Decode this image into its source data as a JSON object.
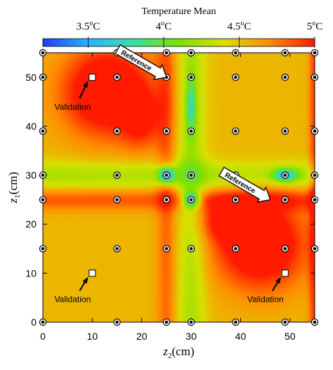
{
  "chart_data": {
    "type": "heatmap",
    "title": "Temperature Mean",
    "xlabel": {
      "symbol": "z",
      "sub": "2",
      "unit": "(cm)"
    },
    "ylabel": {
      "symbol": "z",
      "sub": "1",
      "unit": "(cm)"
    },
    "xlim": [
      0,
      55
    ],
    "ylim": [
      0,
      55
    ],
    "x_ticks": [
      0,
      10,
      20,
      30,
      40,
      50
    ],
    "y_ticks": [
      0,
      10,
      20,
      30,
      40,
      50
    ],
    "colorbar": {
      "range": [
        3.2,
        5.0
      ],
      "ticks": [
        {
          "value": 3.5,
          "label": "3.5",
          "unit": "oC"
        },
        {
          "value": 4.0,
          "label": "4",
          "unit": "oC"
        },
        {
          "value": 4.5,
          "label": "4.5",
          "unit": "oC"
        },
        {
          "value": 5.0,
          "label": "5",
          "unit": "oC"
        }
      ],
      "colors": [
        "#1e3cff",
        "#28b4ff",
        "#39e0a0",
        "#7ee000",
        "#d8e000",
        "#ff8c00",
        "#ff1a00"
      ]
    },
    "sensor_grid": {
      "x": [
        0,
        15,
        25,
        30,
        39,
        49,
        55
      ],
      "y": [
        0,
        15,
        25,
        30,
        39,
        50,
        55
      ]
    },
    "field_base": 4.55,
    "hot_spots": [
      {
        "x": 13,
        "y": 47,
        "rx": 9,
        "ry": 9,
        "amp": 0.75
      },
      {
        "x": 44,
        "y": 16,
        "rx": 9,
        "ry": 9,
        "amp": 0.75
      },
      {
        "x": 37,
        "y": 21,
        "rx": 6,
        "ry": 4,
        "amp": 0.4
      },
      {
        "x": 20,
        "y": 41,
        "rx": 4,
        "ry": 6,
        "amp": 0.35
      }
    ],
    "warm_bands": [
      {
        "axis": "y",
        "center": 25,
        "width": 2.2,
        "amp": 0.3
      },
      {
        "axis": "x",
        "center": 25,
        "width": 2.0,
        "amp": 0.25
      },
      {
        "axis": "x",
        "center": 55,
        "width": 1.2,
        "amp": 0.35
      }
    ],
    "cold_spots": [
      {
        "x": 25,
        "y": 30,
        "rx": 1.6,
        "ry": 1.6,
        "amp": 1.1
      },
      {
        "x": 30,
        "y": 25,
        "rx": 1.6,
        "ry": 1.6,
        "amp": 1.0
      },
      {
        "x": 49,
        "y": 30,
        "rx": 2.4,
        "ry": 1.3,
        "amp": 0.8
      },
      {
        "x": 30,
        "y": 44,
        "rx": 1.0,
        "ry": 6.0,
        "amp": 0.55
      }
    ],
    "cool_bands": [
      {
        "axis": "x",
        "center": 30,
        "width": 3.0,
        "amp": 0.3
      },
      {
        "axis": "y",
        "center": 30,
        "width": 3.0,
        "amp": 0.3
      }
    ],
    "annotations": {
      "reference": [
        {
          "label": "Reference",
          "tip_x": 25,
          "tip_y": 50
        },
        {
          "label": "Reference",
          "tip_x": 46,
          "tip_y": 25
        }
      ],
      "validation": [
        {
          "label": "Validation",
          "x": 10,
          "y": 50
        },
        {
          "label": "Validation",
          "x": 10,
          "y": 10
        },
        {
          "label": "Validation",
          "x": 49,
          "y": 10
        }
      ]
    }
  }
}
